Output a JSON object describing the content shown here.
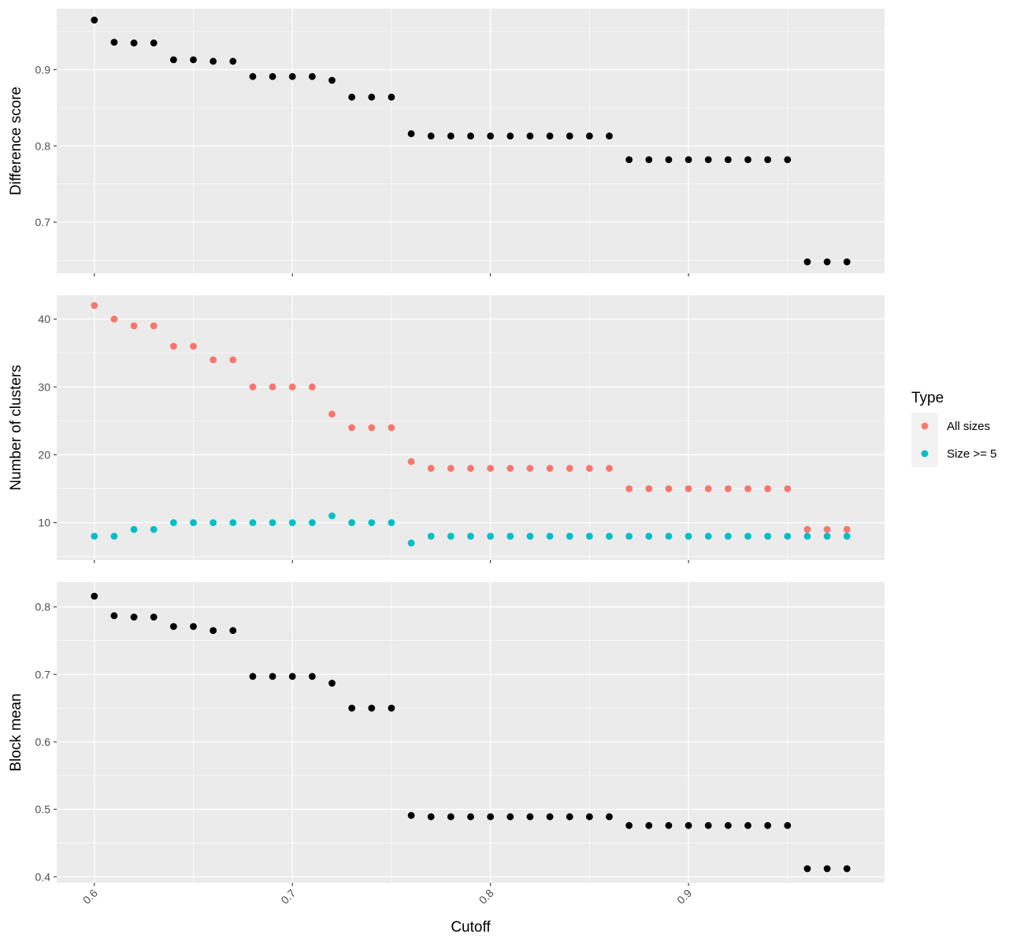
{
  "chart_data": {
    "type": "scatter",
    "xlabel": "Cutoff",
    "x_ticks": [
      0.6,
      0.7,
      0.8,
      0.9
    ],
    "xlim": [
      0.581,
      0.999
    ],
    "x": [
      0.6,
      0.61,
      0.62,
      0.63,
      0.64,
      0.65,
      0.66,
      0.67,
      0.68,
      0.69,
      0.7,
      0.71,
      0.72,
      0.73,
      0.74,
      0.75,
      0.76,
      0.77,
      0.78,
      0.79,
      0.8,
      0.81,
      0.82,
      0.83,
      0.84,
      0.85,
      0.86,
      0.87,
      0.88,
      0.89,
      0.9,
      0.91,
      0.92,
      0.93,
      0.94,
      0.95,
      0.96,
      0.97,
      0.98
    ],
    "panels": [
      {
        "ylabel": "Difference score",
        "ylim": [
          0.633,
          0.98
        ],
        "y_ticks": [
          0.7,
          0.8,
          0.9
        ],
        "series": [
          {
            "color": "#000000",
            "values": [
              0.965,
              0.936,
              0.935,
              0.935,
              0.913,
              0.913,
              0.911,
              0.911,
              0.891,
              0.891,
              0.891,
              0.891,
              0.886,
              0.864,
              0.864,
              0.864,
              0.816,
              0.813,
              0.813,
              0.813,
              0.813,
              0.813,
              0.813,
              0.813,
              0.813,
              0.813,
              0.813,
              0.782,
              0.782,
              0.782,
              0.782,
              0.782,
              0.782,
              0.782,
              0.782,
              0.782,
              0.648,
              0.648,
              0.648
            ]
          }
        ]
      },
      {
        "ylabel": "Number of clusters",
        "ylim": [
          4.5,
          43.5
        ],
        "y_ticks": [
          10,
          20,
          30,
          40
        ],
        "series": [
          {
            "name": "All sizes",
            "color": "#F8766D",
            "values": [
              42,
              40,
              39,
              39,
              36,
              36,
              34,
              34,
              30,
              30,
              30,
              30,
              26,
              24,
              24,
              24,
              19,
              18,
              18,
              18,
              18,
              18,
              18,
              18,
              18,
              18,
              18,
              15,
              15,
              15,
              15,
              15,
              15,
              15,
              15,
              15,
              9,
              9,
              9
            ]
          },
          {
            "name": "Size >= 5",
            "color": "#00BFC4",
            "values": [
              8,
              8,
              9,
              9,
              10,
              10,
              10,
              10,
              10,
              10,
              10,
              10,
              11,
              10,
              10,
              10,
              7,
              8,
              8,
              8,
              8,
              8,
              8,
              8,
              8,
              8,
              8,
              8,
              8,
              8,
              8,
              8,
              8,
              8,
              8,
              8,
              8,
              8,
              8
            ]
          }
        ]
      },
      {
        "ylabel": "Block mean",
        "ylim": [
          0.391,
          0.837
        ],
        "y_ticks": [
          0.4,
          0.5,
          0.6,
          0.7,
          0.8
        ],
        "series": [
          {
            "color": "#000000",
            "values": [
              0.816,
              0.787,
              0.785,
              0.785,
              0.771,
              0.771,
              0.765,
              0.765,
              0.697,
              0.697,
              0.697,
              0.697,
              0.687,
              0.65,
              0.65,
              0.65,
              0.491,
              0.489,
              0.489,
              0.489,
              0.489,
              0.489,
              0.489,
              0.489,
              0.489,
              0.489,
              0.489,
              0.476,
              0.476,
              0.476,
              0.476,
              0.476,
              0.476,
              0.476,
              0.476,
              0.476,
              0.412,
              0.412,
              0.412
            ]
          }
        ]
      }
    ],
    "legend": {
      "title": "Type",
      "position": "right",
      "entries": [
        {
          "label": "All sizes",
          "color": "#F8766D"
        },
        {
          "label": "Size >= 5",
          "color": "#00BFC4"
        }
      ]
    },
    "grid": true,
    "panel_background": "#EBEBEB"
  }
}
